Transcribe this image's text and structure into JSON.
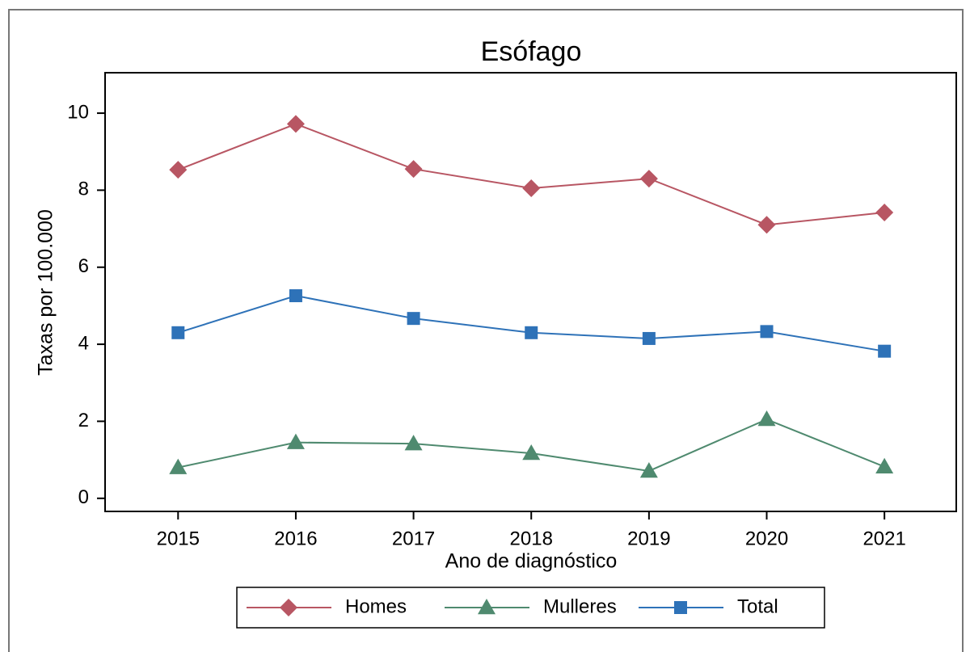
{
  "chart_data": {
    "type": "line",
    "title": "Esófago",
    "x_label": "Ano de diagnóstico",
    "y_label": "Taxas por 100.000",
    "x": [
      2015,
      2016,
      2017,
      2018,
      2019,
      2020,
      2021
    ],
    "xlim": [
      2014.38,
      2021.61
    ],
    "xticks": [
      2015,
      2016,
      2017,
      2018,
      2019,
      2020,
      2021
    ],
    "ylim": [
      -0.34,
      11.05
    ],
    "yticks": [
      0,
      2,
      4,
      6,
      8,
      10
    ],
    "legend": "bottom",
    "series": [
      {
        "name": "Homes",
        "color": "#b85663",
        "marker": "diamond",
        "values": [
          8.53,
          9.72,
          8.55,
          8.05,
          8.3,
          7.1,
          7.42
        ]
      },
      {
        "name": "Mulleres",
        "color": "#4f8a6f",
        "marker": "triangle",
        "values": [
          0.8,
          1.45,
          1.42,
          1.17,
          0.71,
          2.05,
          0.82
        ]
      },
      {
        "name": "Total",
        "color": "#2e72b8",
        "marker": "square",
        "values": [
          4.3,
          5.26,
          4.67,
          4.3,
          4.15,
          4.33,
          3.82
        ]
      }
    ]
  }
}
